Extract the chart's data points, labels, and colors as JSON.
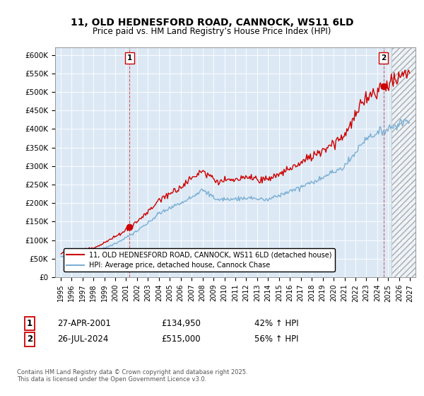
{
  "title": "11, OLD HEDNESFORD ROAD, CANNOCK, WS11 6LD",
  "subtitle": "Price paid vs. HM Land Registry’s House Price Index (HPI)",
  "ylim": [
    0,
    620000
  ],
  "xlim_start": 1994.5,
  "xlim_end": 2027.5,
  "background_color": "#ffffff",
  "plot_bg_color": "#dce9f5",
  "grid_color": "#ffffff",
  "sale1_x": 2001.32,
  "sale1_y": 134950,
  "sale1_label": "1",
  "sale2_x": 2024.57,
  "sale2_y": 515000,
  "sale2_label": "2",
  "sale1_date": "27-APR-2001",
  "sale1_price": "£134,950",
  "sale1_hpi": "42% ↑ HPI",
  "sale2_date": "26-JUL-2024",
  "sale2_price": "£515,000",
  "sale2_hpi": "56% ↑ HPI",
  "red_color": "#cc0000",
  "blue_color": "#7bafd4",
  "legend_label1": "11, OLD HEDNESFORD ROAD, CANNOCK, WS11 6LD (detached house)",
  "legend_label2": "HPI: Average price, detached house, Cannock Chase",
  "footnote": "Contains HM Land Registry data © Crown copyright and database right 2025.\nThis data is licensed under the Open Government Licence v3.0."
}
